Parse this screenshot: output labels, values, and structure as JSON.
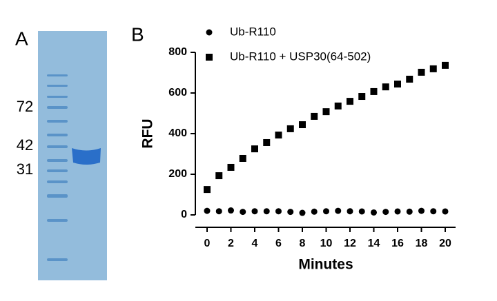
{
  "panel_labels": [
    "A",
    "B"
  ],
  "gel": {
    "markers": [
      "72",
      "42",
      "31"
    ]
  },
  "chart_data": {
    "type": "scatter",
    "ylabel": "RFU",
    "xlabel": "Minutes",
    "x": [
      0,
      1,
      2,
      3,
      4,
      5,
      6,
      7,
      8,
      9,
      10,
      11,
      12,
      13,
      14,
      15,
      16,
      17,
      18,
      19,
      20
    ],
    "series": [
      {
        "name": "Ub-R110",
        "color": "#000000",
        "marker": "circle",
        "values": [
          20,
          18,
          22,
          15,
          18,
          18,
          18,
          15,
          10,
          16,
          18,
          20,
          18,
          17,
          12,
          15,
          17,
          16,
          20,
          18,
          17
        ]
      },
      {
        "name": "Ub-R110 + USP30(64-502)",
        "color": "#000000",
        "marker": "square",
        "values": [
          125,
          193,
          234,
          278,
          325,
          356,
          393,
          424,
          444,
          485,
          508,
          536,
          559,
          583,
          607,
          630,
          644,
          668,
          702,
          719,
          736
        ]
      }
    ],
    "xlim": [
      0,
      20
    ],
    "xticks": [
      0,
      2,
      4,
      6,
      8,
      10,
      12,
      14,
      16,
      18,
      20
    ],
    "ylim": [
      0,
      800
    ],
    "yticks": [
      0,
      200,
      400,
      600,
      800
    ],
    "grid": false,
    "legend": "upper left"
  }
}
